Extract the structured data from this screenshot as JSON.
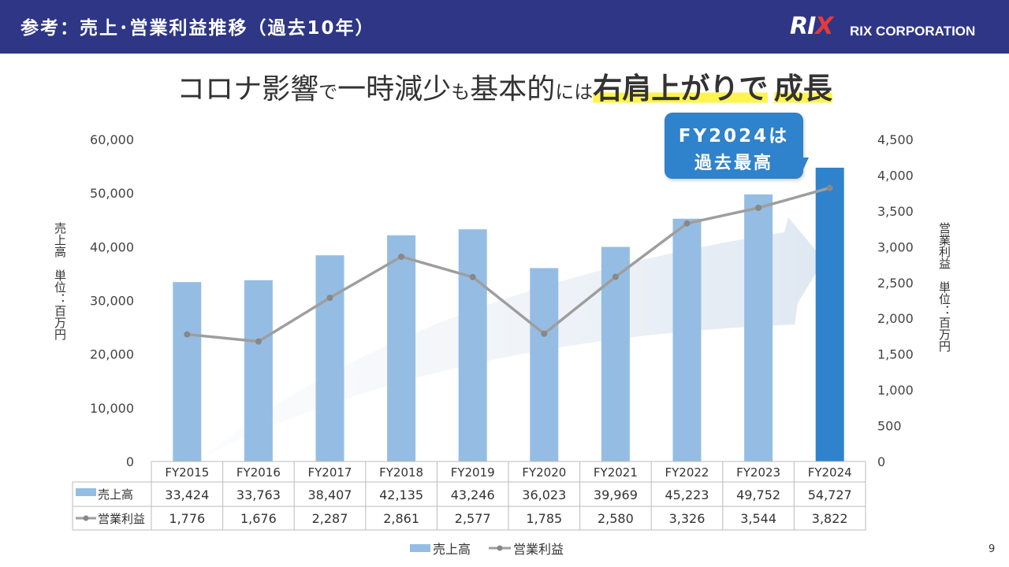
{
  "header": {
    "title": "参考：売上･営業利益推移（過去10年）",
    "logo_mark": "RIX",
    "company": "RIX CORPORATION"
  },
  "headline": {
    "part1": "コロナ影響",
    "part2": "で",
    "part3": "一時減少",
    "part4": "も",
    "part5": "基本的",
    "part6": "には",
    "part7": "右肩上がりで",
    "part8": "成長"
  },
  "callout": {
    "line1": "FY2024は",
    "line2": "過去最高"
  },
  "axis_labels": {
    "left": "売上高　単位：百万円",
    "right": "営業利益　単位：百万円"
  },
  "page_number": "9",
  "colors": {
    "header_bg": "#2e3685",
    "bar": "#95bde3",
    "bar_highlight": "#2f82cc",
    "line": "#9e9e9e",
    "highlight_marker": "#fff44f"
  },
  "chart_data": {
    "type": "bar",
    "categories": [
      "FY2015",
      "FY2016",
      "FY2017",
      "FY2018",
      "FY2019",
      "FY2020",
      "FY2021",
      "FY2022",
      "FY2023",
      "FY2024"
    ],
    "series": [
      {
        "name": "売上高",
        "type": "bar",
        "axis": "left",
        "values": [
          33424,
          33763,
          38407,
          42135,
          43246,
          36023,
          39969,
          45223,
          49752,
          54727
        ]
      },
      {
        "name": "営業利益",
        "type": "line",
        "axis": "right",
        "values": [
          1776,
          1676,
          2287,
          2861,
          2577,
          1785,
          2580,
          3326,
          3544,
          3822
        ]
      }
    ],
    "table_values": {
      "売上高": [
        "33,424",
        "33,763",
        "38,407",
        "42,135",
        "43,246",
        "36,023",
        "39,969",
        "45,223",
        "49,752",
        "54,727"
      ],
      "営業利益": [
        "1,776",
        "1,676",
        "2,287",
        "2,861",
        "2,577",
        "1,785",
        "2,580",
        "3,326",
        "3,544",
        "3,822"
      ]
    },
    "y_left": {
      "ylim": [
        0,
        60000
      ],
      "ticks": [
        "0",
        "10,000",
        "20,000",
        "30,000",
        "40,000",
        "50,000",
        "60,000"
      ]
    },
    "y_right": {
      "ylim": [
        0,
        4500
      ],
      "ticks": [
        "0",
        "500",
        "1,000",
        "1,500",
        "2,000",
        "2,500",
        "3,000",
        "3,500",
        "4,000",
        "4,500"
      ]
    },
    "highlight_category": "FY2024",
    "legend_position": "bottom",
    "grid": false
  }
}
